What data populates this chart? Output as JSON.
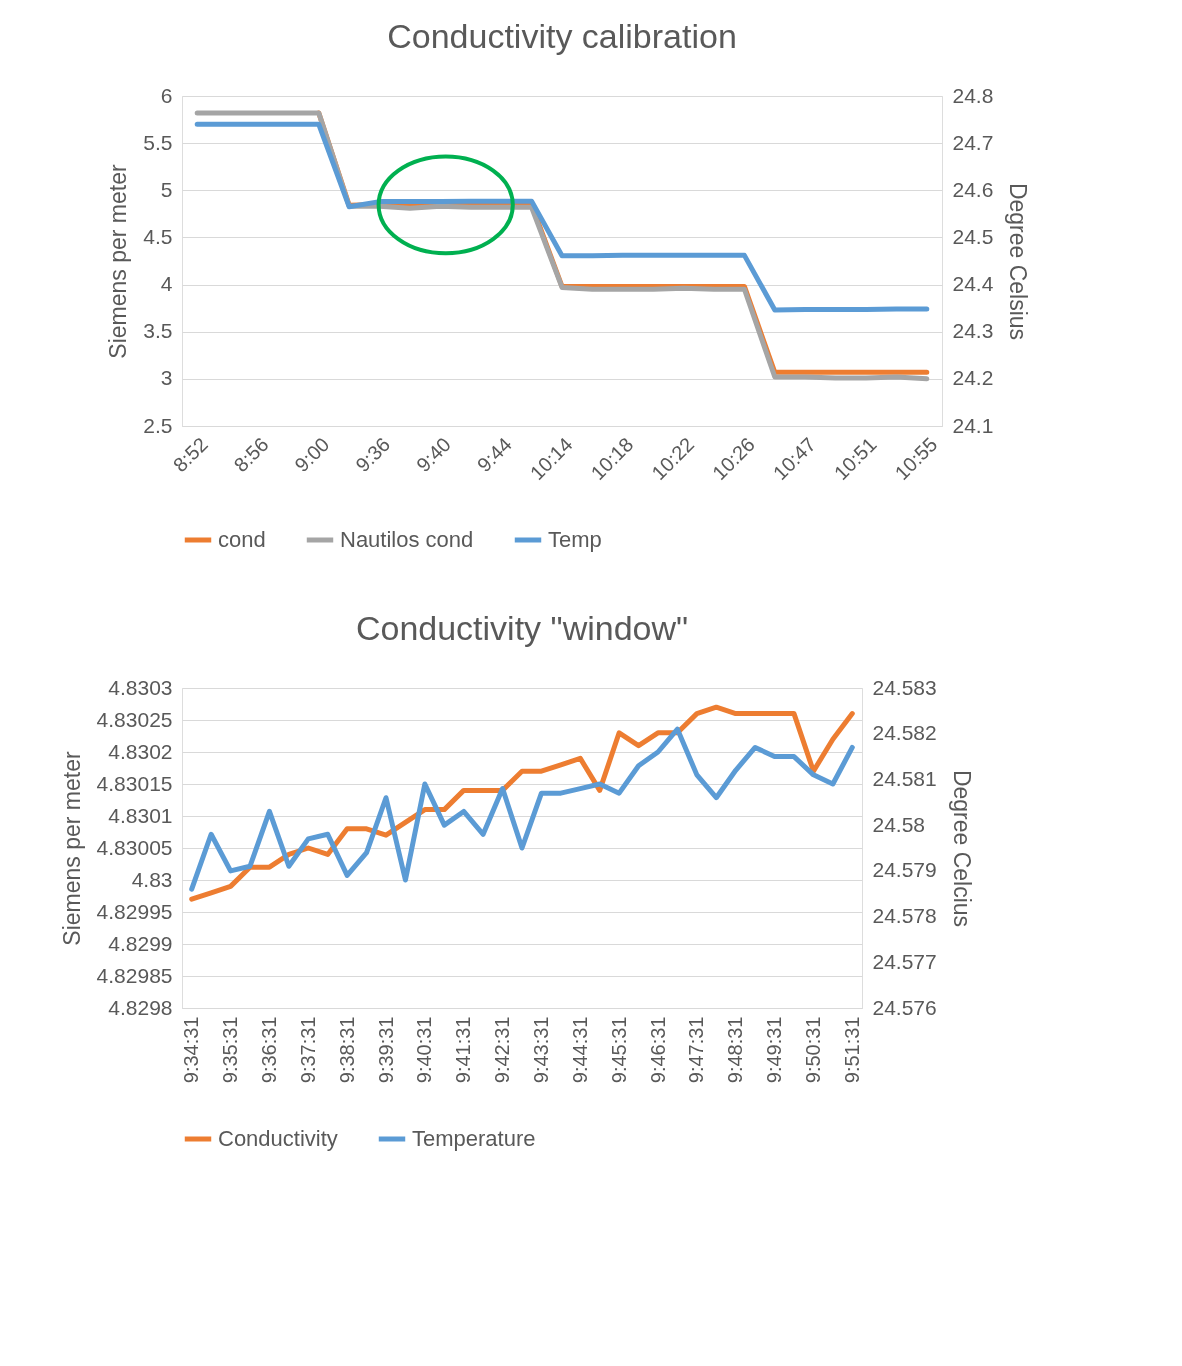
{
  "chart_data": [
    {
      "type": "line",
      "title": "Conductivity calibration",
      "ylabel": "Siemens  per meter",
      "y2label": "Degree Celsius",
      "categories": [
        "8:52",
        null,
        "8:56",
        null,
        "9:00",
        null,
        "9:36",
        null,
        "9:40",
        null,
        "9:44",
        null,
        "10:14",
        null,
        "10:18",
        null,
        "10:22",
        null,
        "10:26",
        null,
        "10:47",
        null,
        "10:51",
        null,
        "10:55"
      ],
      "series": [
        {
          "name": "cond",
          "color": "#ed7d31",
          "values": [
            null,
            null,
            null,
            null,
            5.82,
            4.84,
            4.85,
            4.85,
            4.85,
            4.85,
            4.85,
            4.85,
            3.98,
            3.98,
            3.98,
            3.98,
            3.98,
            3.98,
            3.98,
            3.07,
            3.07,
            3.07,
            3.07,
            3.07,
            3.07
          ]
        },
        {
          "name": "Nautilos cond",
          "color": "#a5a5a5",
          "values": [
            5.82,
            5.82,
            5.82,
            5.82,
            5.82,
            4.83,
            4.83,
            4.81,
            4.83,
            4.82,
            4.82,
            4.82,
            3.97,
            3.95,
            3.95,
            3.95,
            3.96,
            3.95,
            3.95,
            3.02,
            3.02,
            3.01,
            3.01,
            3.02,
            3.0
          ]
        },
        {
          "name": "Temp",
          "color": "#5b9bd5",
          "axis": "y2",
          "values": [
            24.74,
            24.74,
            24.74,
            24.74,
            24.74,
            24.565,
            24.576,
            24.576,
            24.576,
            24.577,
            24.577,
            24.577,
            24.461,
            24.461,
            24.462,
            24.462,
            24.462,
            24.462,
            24.462,
            24.346,
            24.347,
            24.347,
            24.347,
            24.348,
            24.348
          ]
        }
      ],
      "ylim": [
        2.5,
        6
      ],
      "yticks": [
        2.5,
        3,
        3.5,
        4,
        4.5,
        5,
        5.5,
        6
      ],
      "y2lim": [
        24.1,
        24.8
      ],
      "y2ticks": [
        24.1,
        24.2,
        24.3,
        24.4,
        24.5,
        24.6,
        24.7,
        24.8
      ],
      "grid": "y",
      "legend": "bottom"
    },
    {
      "type": "line",
      "title": "Conductivity \"window\"",
      "ylabel": "Siemens per meter",
      "y2label": "Degree Celcius",
      "categories": [
        "9:34:31",
        null,
        "9:35:31",
        null,
        "9:36:31",
        null,
        "9:37:31",
        null,
        "9:38:31",
        null,
        "9:39:31",
        null,
        "9:40:31",
        null,
        "9:41:31",
        null,
        "9:42:31",
        null,
        "9:43:31",
        null,
        "9:44:31",
        null,
        "9:45:31",
        null,
        "9:46:31",
        null,
        "9:47:31",
        null,
        "9:48:31",
        null,
        "9:49:31",
        null,
        "9:50:31",
        null,
        "9:51:31"
      ],
      "series": [
        {
          "name": "Conductivity",
          "color": "#ed7d31",
          "values": [
            4.82997,
            4.82998,
            4.82999,
            4.83002,
            4.83002,
            4.83004,
            4.83005,
            4.83004,
            4.83008,
            4.83008,
            4.83007,
            4.83009,
            4.83011,
            4.83011,
            4.83014,
            4.83014,
            4.83014,
            4.83017,
            4.83017,
            4.83018,
            4.83019,
            4.83014,
            4.83023,
            4.83021,
            4.83023,
            4.83023,
            4.83026,
            4.83027,
            4.83026,
            4.83026,
            4.83026,
            4.83026,
            4.83017,
            4.83022,
            4.83026
          ]
        },
        {
          "name": "Temperature",
          "color": "#5b9bd5",
          "axis": "y2",
          "values": [
            24.5786,
            24.5798,
            24.579,
            24.5791,
            24.5803,
            24.5791,
            24.5797,
            24.5798,
            24.5789,
            24.5794,
            24.5806,
            24.5788,
            24.5809,
            24.58,
            24.5803,
            24.5798,
            24.5808,
            24.5795,
            24.5807,
            24.5807,
            24.5808,
            24.5809,
            24.5807,
            24.5813,
            24.5816,
            24.5821,
            24.5811,
            24.5806,
            24.5812,
            24.5817,
            24.5815,
            24.5815,
            24.5811,
            24.5809,
            24.5817
          ]
        }
      ],
      "ylim": [
        4.8298,
        4.8303
      ],
      "yticks": [
        4.8298,
        4.82985,
        4.8299,
        4.82995,
        4.83,
        4.83005,
        4.8301,
        4.83015,
        4.8302,
        4.83025,
        4.8303
      ],
      "y2lim": [
        24.576,
        24.583
      ],
      "y2ticks": [
        24.576,
        24.577,
        24.578,
        24.579,
        24.58,
        24.581,
        24.582,
        24.583
      ],
      "grid": "y",
      "legend": "bottom"
    }
  ]
}
